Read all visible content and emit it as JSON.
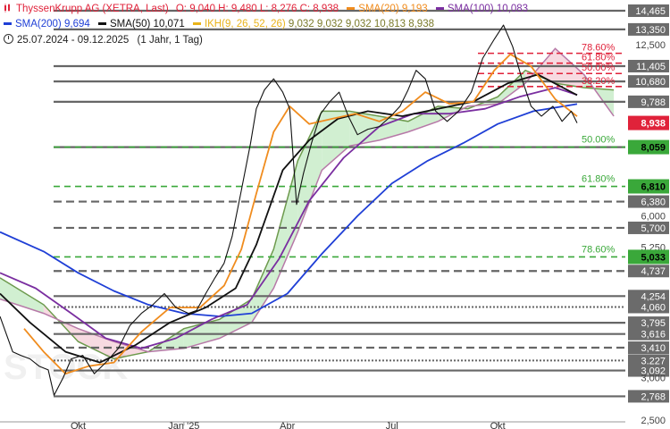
{
  "header": {
    "instrument": "ThyssenKrupp AG (XETRA, Last)",
    "ohlc": "O: 9,040  H: 9,480  L: 8,276  C: 8,938",
    "date_range": "25.07.2024 - 09.12.2025",
    "interval": "(1 Jahr, 1 Tag)",
    "icons": [
      "candles-icon",
      "clock-icon"
    ]
  },
  "indicators": [
    {
      "label": "SMA(20)",
      "value": "9,193",
      "color": "#f08c1e"
    },
    {
      "label": "SMA(100)",
      "value": "10,083",
      "color": "#7a2ea0"
    },
    {
      "label": "SMA(200)",
      "value": "9,694",
      "color": "#1f3fd6"
    },
    {
      "label": "SMA(50)",
      "value": "10,071",
      "color": "#111111"
    },
    {
      "label": "IKH(9, 26, 52, 26)",
      "value": "9,032  9,032  9,032  10,813  8,938",
      "color": "#e9b31a"
    }
  ],
  "colors": {
    "price_line": "#111111",
    "support_green": "#3aa83a",
    "fib_red": "#e0223a",
    "level_gray": "#666666",
    "ichimoku_cloud_green": "#c9ecc9",
    "ichimoku_cloud_red": "#f6d3dc",
    "current_price_badge": "#e0223a"
  },
  "chart_data": {
    "type": "line",
    "title": "ThyssenKrupp AG (XETRA, Last)",
    "y_scale": "log",
    "ylim": [
      2.5,
      14.8
    ],
    "x_ticks": [
      "Okt",
      "Jan '25",
      "Apr",
      "Jul",
      "Okt"
    ],
    "x_tick_dates": [
      "2024-10-01",
      "2025-01-01",
      "2025-04-01",
      "2025-07-01",
      "2025-10-01"
    ],
    "x_range": [
      "2024-07-25",
      "2025-12-09"
    ],
    "y_axis_labels": [
      "14,465",
      "13,350",
      "12,500",
      "11,405",
      "10,680",
      "9,788",
      "8,938",
      "8,059",
      "6,810",
      "6,380",
      "6,000",
      "5,700",
      "5,250",
      "5,033",
      "4,737",
      "4,254",
      "4,060",
      "3,795",
      "3,616",
      "3,410",
      "3,227",
      "3,092",
      "3,000",
      "2,768",
      "2,500"
    ],
    "levels": [
      {
        "value": 14.465,
        "label": "14,465",
        "style": "solid",
        "kind": "resistance"
      },
      {
        "value": 13.35,
        "label": "13,350",
        "style": "solid",
        "kind": "resistance"
      },
      {
        "value": 11.405,
        "label": "11,405",
        "style": "solid",
        "kind": "resistance"
      },
      {
        "value": 10.68,
        "label": "10,680",
        "style": "solid",
        "kind": "resistance"
      },
      {
        "value": 9.788,
        "label": "9,788",
        "style": "solid",
        "kind": "support"
      },
      {
        "value": 8.059,
        "label": "8,059",
        "style": "solid",
        "kind": "support"
      },
      {
        "value": 6.38,
        "label": "6,380",
        "style": "dashed",
        "kind": "support"
      },
      {
        "value": 5.7,
        "label": "5,700",
        "style": "dashed",
        "kind": "support"
      },
      {
        "value": 4.737,
        "label": "4,737",
        "style": "dashed",
        "kind": "support"
      },
      {
        "value": 4.254,
        "label": "4,254",
        "style": "solid",
        "kind": "support"
      },
      {
        "value": 4.06,
        "label": "4,060",
        "style": "dotted",
        "kind": "support"
      },
      {
        "value": 3.795,
        "label": "3,795",
        "style": "solid",
        "kind": "support"
      },
      {
        "value": 3.616,
        "label": "3,616",
        "style": "solid",
        "kind": "support"
      },
      {
        "value": 3.41,
        "label": "3,410",
        "style": "dashed",
        "kind": "support"
      },
      {
        "value": 3.227,
        "label": "3,227",
        "style": "dotted",
        "kind": "support"
      },
      {
        "value": 3.092,
        "label": "3,092",
        "style": "solid",
        "kind": "support"
      },
      {
        "value": 2.768,
        "label": "2,768",
        "style": "solid",
        "kind": "support"
      }
    ],
    "green_badges": [
      {
        "value": 8.059,
        "label": "8,059"
      },
      {
        "value": 6.81,
        "label": "6,810"
      },
      {
        "value": 5.033,
        "label": "5,033"
      }
    ],
    "current_price": {
      "value": 8.938,
      "label": "8,938"
    },
    "fib_retracements_green": [
      {
        "pct": "50.00%",
        "value": 8.059
      },
      {
        "pct": "61.80%",
        "value": 6.81
      },
      {
        "pct": "78.60%",
        "value": 5.033
      }
    ],
    "fib_retracements_red": [
      {
        "pct": "78.60%",
        "value": 12.05
      },
      {
        "pct": "61.80%",
        "value": 11.55
      },
      {
        "pct": "50.00%",
        "value": 11.05
      },
      {
        "pct": "38.20%",
        "value": 10.45
      }
    ],
    "series": [
      {
        "name": "ThyssenKrupp AG (XETRA, Last)",
        "points": [
          [
            "2024-07-25",
            3.9
          ],
          [
            "2024-08-05",
            3.35
          ],
          [
            "2024-08-12",
            3.3
          ],
          [
            "2024-08-20",
            3.25
          ],
          [
            "2024-08-28",
            3.15
          ],
          [
            "2024-09-05",
            3.1
          ],
          [
            "2024-09-10",
            2.78
          ],
          [
            "2024-09-18",
            3.0
          ],
          [
            "2024-09-25",
            3.25
          ],
          [
            "2024-10-05",
            3.3
          ],
          [
            "2024-10-15",
            3.05
          ],
          [
            "2024-10-25",
            3.2
          ],
          [
            "2024-11-05",
            3.4
          ],
          [
            "2024-11-15",
            3.75
          ],
          [
            "2024-11-25",
            3.95
          ],
          [
            "2024-12-05",
            4.1
          ],
          [
            "2024-12-15",
            4.3
          ],
          [
            "2024-12-25",
            4.05
          ],
          [
            "2025-01-05",
            3.95
          ],
          [
            "2025-01-12",
            4.0
          ],
          [
            "2025-01-20",
            4.3
          ],
          [
            "2025-01-28",
            4.6
          ],
          [
            "2025-02-05",
            4.9
          ],
          [
            "2025-02-12",
            5.5
          ],
          [
            "2025-02-20",
            6.7
          ],
          [
            "2025-02-28",
            8.2
          ],
          [
            "2025-03-05",
            9.5
          ],
          [
            "2025-03-12",
            10.3
          ],
          [
            "2025-03-20",
            10.8
          ],
          [
            "2025-03-28",
            10.2
          ],
          [
            "2025-04-03",
            9.5
          ],
          [
            "2025-04-09",
            6.3
          ],
          [
            "2025-04-15",
            7.2
          ],
          [
            "2025-04-22",
            8.2
          ],
          [
            "2025-04-30",
            9.3
          ],
          [
            "2025-05-08",
            9.8
          ],
          [
            "2025-05-16",
            10.2
          ],
          [
            "2025-05-24",
            9.2
          ],
          [
            "2025-06-01",
            8.5
          ],
          [
            "2025-06-10",
            8.7
          ],
          [
            "2025-06-20",
            8.8
          ],
          [
            "2025-06-30",
            9.2
          ],
          [
            "2025-07-08",
            9.6
          ],
          [
            "2025-07-15",
            10.3
          ],
          [
            "2025-07-22",
            11.2
          ],
          [
            "2025-07-30",
            10.8
          ],
          [
            "2025-08-08",
            9.4
          ],
          [
            "2025-08-18",
            9.0
          ],
          [
            "2025-08-28",
            9.4
          ],
          [
            "2025-09-08",
            10.2
          ],
          [
            "2025-09-18",
            11.8
          ],
          [
            "2025-09-28",
            12.8
          ],
          [
            "2025-10-06",
            13.6
          ],
          [
            "2025-10-14",
            12.4
          ],
          [
            "2025-10-22",
            10.8
          ],
          [
            "2025-10-30",
            9.6
          ],
          [
            "2025-11-08",
            9.2
          ],
          [
            "2025-11-18",
            9.6
          ],
          [
            "2025-11-26",
            9.0
          ],
          [
            "2025-12-04",
            9.4
          ],
          [
            "2025-12-09",
            8.938
          ]
        ]
      },
      {
        "name": "SMA(20)",
        "points": [
          [
            "2024-08-15",
            3.7
          ],
          [
            "2024-09-01",
            3.35
          ],
          [
            "2024-09-20",
            3.05
          ],
          [
            "2024-10-10",
            3.15
          ],
          [
            "2024-11-01",
            3.2
          ],
          [
            "2024-11-25",
            3.65
          ],
          [
            "2024-12-20",
            4.05
          ],
          [
            "2025-01-15",
            4.05
          ],
          [
            "2025-02-05",
            4.45
          ],
          [
            "2025-02-20",
            5.2
          ],
          [
            "2025-03-05",
            6.6
          ],
          [
            "2025-03-20",
            8.6
          ],
          [
            "2025-04-03",
            9.6
          ],
          [
            "2025-04-20",
            8.9
          ],
          [
            "2025-05-10",
            9.1
          ],
          [
            "2025-05-30",
            9.3
          ],
          [
            "2025-06-20",
            9.0
          ],
          [
            "2025-07-10",
            9.4
          ],
          [
            "2025-07-30",
            10.2
          ],
          [
            "2025-08-20",
            9.7
          ],
          [
            "2025-09-10",
            9.8
          ],
          [
            "2025-09-28",
            11.2
          ],
          [
            "2025-10-12",
            12.0
          ],
          [
            "2025-10-30",
            11.4
          ],
          [
            "2025-11-20",
            9.9
          ],
          [
            "2025-12-09",
            9.193
          ]
        ]
      },
      {
        "name": "SMA(50)",
        "points": [
          [
            "2024-07-25",
            4.3
          ],
          [
            "2024-08-20",
            3.8
          ],
          [
            "2024-09-20",
            3.35
          ],
          [
            "2024-10-20",
            3.2
          ],
          [
            "2024-11-20",
            3.45
          ],
          [
            "2024-12-20",
            3.8
          ],
          [
            "2025-01-20",
            4.05
          ],
          [
            "2025-02-15",
            4.4
          ],
          [
            "2025-03-05",
            5.3
          ],
          [
            "2025-03-28",
            7.3
          ],
          [
            "2025-04-20",
            8.3
          ],
          [
            "2025-05-15",
            9.1
          ],
          [
            "2025-06-10",
            9.4
          ],
          [
            "2025-07-10",
            9.2
          ],
          [
            "2025-08-10",
            9.5
          ],
          [
            "2025-09-10",
            9.8
          ],
          [
            "2025-10-10",
            10.6
          ],
          [
            "2025-11-05",
            11.0
          ],
          [
            "2025-12-09",
            10.071
          ]
        ]
      },
      {
        "name": "SMA(100)",
        "points": [
          [
            "2024-07-25",
            4.7
          ],
          [
            "2024-08-25",
            4.4
          ],
          [
            "2024-09-25",
            3.95
          ],
          [
            "2024-10-25",
            3.55
          ],
          [
            "2024-11-25",
            3.4
          ],
          [
            "2024-12-25",
            3.55
          ],
          [
            "2025-01-25",
            3.85
          ],
          [
            "2025-02-25",
            4.1
          ],
          [
            "2025-03-25",
            5.0
          ],
          [
            "2025-04-20",
            6.4
          ],
          [
            "2025-05-20",
            7.7
          ],
          [
            "2025-06-20",
            8.8
          ],
          [
            "2025-07-20",
            9.3
          ],
          [
            "2025-08-20",
            9.3
          ],
          [
            "2025-09-20",
            9.5
          ],
          [
            "2025-10-20",
            10.0
          ],
          [
            "2025-11-20",
            10.4
          ],
          [
            "2025-12-09",
            10.083
          ]
        ]
      },
      {
        "name": "SMA(200)",
        "points": [
          [
            "2024-07-25",
            5.6
          ],
          [
            "2024-09-01",
            5.15
          ],
          [
            "2024-10-01",
            4.7
          ],
          [
            "2024-11-01",
            4.35
          ],
          [
            "2024-12-01",
            4.1
          ],
          [
            "2025-01-01",
            3.95
          ],
          [
            "2025-02-01",
            3.9
          ],
          [
            "2025-03-01",
            3.95
          ],
          [
            "2025-04-01",
            4.3
          ],
          [
            "2025-05-01",
            5.1
          ],
          [
            "2025-06-01",
            6.0
          ],
          [
            "2025-07-01",
            6.9
          ],
          [
            "2025-08-01",
            7.6
          ],
          [
            "2025-09-01",
            8.2
          ],
          [
            "2025-10-01",
            8.9
          ],
          [
            "2025-11-01",
            9.4
          ],
          [
            "2025-12-09",
            9.694
          ]
        ]
      }
    ],
    "ichimoku_cloud": {
      "span_a": [
        [
          "2024-07-25",
          4.6
        ],
        [
          "2024-09-01",
          4.1
        ],
        [
          "2024-10-01",
          3.5
        ],
        [
          "2024-11-01",
          3.25
        ],
        [
          "2024-12-01",
          3.35
        ],
        [
          "2025-01-01",
          3.7
        ],
        [
          "2025-02-01",
          3.85
        ],
        [
          "2025-03-01",
          4.2
        ],
        [
          "2025-03-20",
          5.2
        ],
        [
          "2025-04-10",
          7.6
        ],
        [
          "2025-05-01",
          9.4
        ],
        [
          "2025-05-25",
          9.4
        ],
        [
          "2025-06-20",
          9.2
        ],
        [
          "2025-07-15",
          9.0
        ],
        [
          "2025-08-10",
          9.6
        ],
        [
          "2025-09-05",
          9.5
        ],
        [
          "2025-10-01",
          10.0
        ],
        [
          "2025-10-25",
          11.2
        ],
        [
          "2025-11-20",
          10.6
        ],
        [
          "2025-12-15",
          10.4
        ],
        [
          "2026-01-10",
          10.3
        ]
      ],
      "span_b": [
        [
          "2024-07-25",
          4.2
        ],
        [
          "2024-09-01",
          3.95
        ],
        [
          "2024-10-01",
          3.7
        ],
        [
          "2024-11-01",
          3.5
        ],
        [
          "2024-12-01",
          3.35
        ],
        [
          "2025-01-01",
          3.4
        ],
        [
          "2025-02-01",
          3.55
        ],
        [
          "2025-03-01",
          3.8
        ],
        [
          "2025-03-20",
          4.4
        ],
        [
          "2025-04-10",
          5.6
        ],
        [
          "2025-05-01",
          7.3
        ],
        [
          "2025-05-25",
          8.1
        ],
        [
          "2025-06-20",
          8.3
        ],
        [
          "2025-07-15",
          8.6
        ],
        [
          "2025-08-10",
          9.0
        ],
        [
          "2025-09-05",
          9.6
        ],
        [
          "2025-10-01",
          9.7
        ],
        [
          "2025-10-25",
          10.6
        ],
        [
          "2025-11-20",
          12.3
        ],
        [
          "2025-12-15",
          11.0
        ],
        [
          "2026-01-10",
          9.2
        ]
      ]
    },
    "watermark": "STOCK",
    "grid": true,
    "legend_position": "top-left"
  }
}
